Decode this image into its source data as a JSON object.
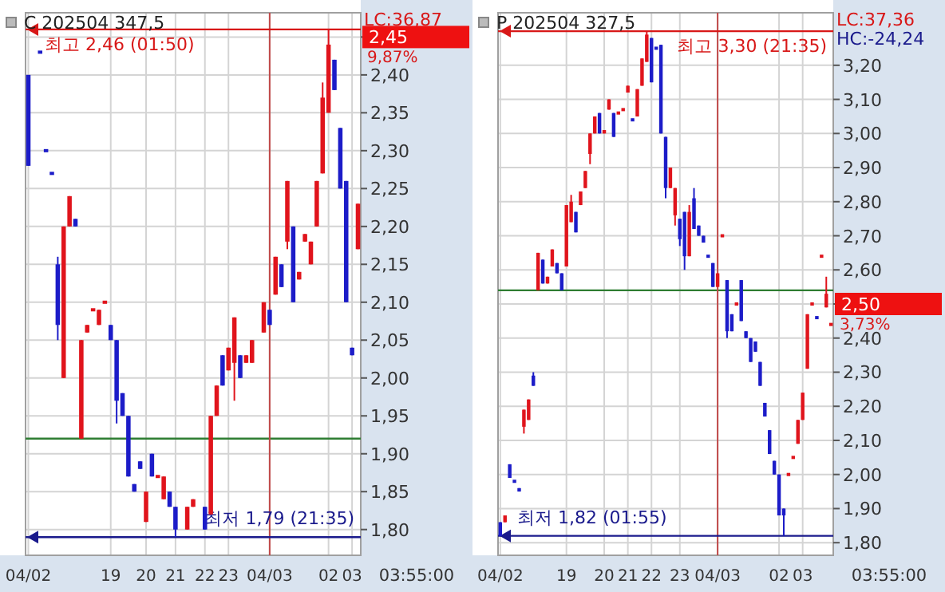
{
  "chart_data": [
    {
      "type": "candlestick",
      "title": "C 202504 347,5",
      "categories": [
        "04/02",
        null,
        null,
        null,
        null,
        null,
        null,
        null,
        null,
        null,
        null,
        null,
        null,
        null,
        "19",
        null,
        null,
        null,
        null,
        null,
        "20",
        null,
        null,
        null,
        null,
        "21",
        null,
        null,
        null,
        null,
        "22",
        null,
        null,
        null,
        "23",
        null,
        null,
        null,
        null,
        null,
        null,
        "04/03",
        null,
        null,
        null,
        null,
        null,
        null,
        null,
        null,
        null,
        "02",
        null,
        null,
        null,
        "03",
        null
      ],
      "ohlc": [
        [
          2.4,
          2.4,
          2.28,
          2.28
        ],
        null,
        [
          2.43,
          2.43,
          2.43,
          2.43
        ],
        [
          2.3,
          2.3,
          2.3,
          2.3
        ],
        [
          2.27,
          2.27,
          2.27,
          2.27
        ],
        [
          2.15,
          2.16,
          2.05,
          2.07
        ],
        [
          2.0,
          2.2,
          2.0,
          2.2
        ],
        [
          2.2,
          2.24,
          2.2,
          2.24
        ],
        [
          2.21,
          2.21,
          2.2,
          2.2
        ],
        [
          1.92,
          2.05,
          1.92,
          2.05
        ],
        [
          2.06,
          2.07,
          2.06,
          2.07
        ],
        [
          2.09,
          2.09,
          2.09,
          2.09
        ],
        [
          2.07,
          2.09,
          2.07,
          2.09
        ],
        [
          2.1,
          2.1,
          2.1,
          2.1
        ],
        [
          2.07,
          2.07,
          2.05,
          2.05
        ],
        [
          2.05,
          2.05,
          1.94,
          1.97
        ],
        [
          1.98,
          1.98,
          1.95,
          1.95
        ],
        [
          1.95,
          1.95,
          1.87,
          1.87
        ],
        [
          1.86,
          1.86,
          1.85,
          1.85
        ],
        [
          1.89,
          1.89,
          1.88,
          1.88
        ],
        [
          1.81,
          1.85,
          1.81,
          1.85
        ],
        [
          1.9,
          1.9,
          1.87,
          1.87
        ],
        [
          1.87,
          1.87,
          1.87,
          1.87
        ],
        [
          1.84,
          1.87,
          1.84,
          1.87
        ],
        [
          1.85,
          1.85,
          1.83,
          1.83
        ],
        [
          1.83,
          1.83,
          1.79,
          1.8
        ],
        null,
        [
          1.8,
          1.83,
          1.8,
          1.83
        ],
        [
          1.83,
          1.84,
          1.83,
          1.84
        ],
        null,
        [
          1.83,
          1.83,
          1.8,
          1.8
        ],
        [
          1.82,
          1.95,
          1.82,
          1.95
        ],
        [
          1.95,
          1.99,
          1.95,
          1.99
        ],
        [
          2.03,
          2.03,
          1.99,
          1.99
        ],
        [
          2.01,
          2.04,
          2.01,
          2.04
        ],
        [
          2.02,
          2.08,
          1.97,
          2.08
        ],
        [
          2.03,
          2.03,
          2.0,
          2.0
        ],
        [
          2.02,
          2.03,
          2.02,
          2.03
        ],
        [
          2.02,
          2.05,
          2.02,
          2.05
        ],
        null,
        [
          2.06,
          2.1,
          2.06,
          2.1
        ],
        [
          2.09,
          2.09,
          2.07,
          2.07
        ],
        [
          2.11,
          2.16,
          2.11,
          2.16
        ],
        [
          2.15,
          2.15,
          2.12,
          2.12
        ],
        [
          2.18,
          2.26,
          2.17,
          2.26
        ],
        [
          2.2,
          2.2,
          2.1,
          2.1
        ],
        [
          2.13,
          2.14,
          2.13,
          2.14
        ],
        [
          2.18,
          2.19,
          2.18,
          2.19
        ],
        [
          2.15,
          2.18,
          2.15,
          2.18
        ],
        [
          2.2,
          2.26,
          2.2,
          2.26
        ],
        [
          2.27,
          2.39,
          2.27,
          2.37
        ],
        [
          2.35,
          2.46,
          2.35,
          2.44
        ],
        [
          2.42,
          2.42,
          2.38,
          2.38
        ],
        [
          2.33,
          2.33,
          2.25,
          2.25
        ],
        [
          2.26,
          2.26,
          2.1,
          2.1
        ],
        [
          2.04,
          2.04,
          2.03,
          2.03
        ],
        [
          2.17,
          2.23,
          2.17,
          2.23
        ]
      ],
      "colors": [
        "#1c1cc8",
        null,
        "#1c1cc8",
        "#1c1cc8",
        "#1c1cc8",
        "#1c1cc8",
        "#e0141c",
        "#e0141c",
        "#1c1cc8",
        "#e0141c",
        "#e0141c",
        "#e0141c",
        "#e0141c",
        "#e0141c",
        "#1c1cc8",
        "#1c1cc8",
        "#1c1cc8",
        "#1c1cc8",
        "#1c1cc8",
        "#1c1cc8",
        "#e0141c",
        "#1c1cc8",
        "#e0141c",
        "#e0141c",
        "#1c1cc8",
        "#1c1cc8",
        null,
        "#e0141c",
        "#e0141c",
        null,
        "#1c1cc8",
        "#e0141c",
        "#e0141c",
        "#1c1cc8",
        "#e0141c",
        "#e0141c",
        "#1c1cc8",
        "#e0141c",
        "#e0141c",
        null,
        "#e0141c",
        "#1c1cc8",
        "#e0141c",
        "#1c1cc8",
        "#e0141c",
        "#1c1cc8",
        "#e0141c",
        "#e0141c",
        "#e0141c",
        "#e0141c",
        "#e0141c",
        "#e0141c",
        "#1c1cc8",
        "#1c1cc8",
        "#1c1cc8",
        "#1c1cc8",
        "#e0141c"
      ],
      "ylim": [
        1.766,
        2.482
      ],
      "yticks": [
        {
          "value": 1.8,
          "label": "1,80"
        },
        {
          "value": 1.85,
          "label": "1,85"
        },
        {
          "value": 1.9,
          "label": "1,90"
        },
        {
          "value": 1.95,
          "label": "1,95"
        },
        {
          "value": 2.0,
          "label": "2,00"
        },
        {
          "value": 2.05,
          "label": "2,05"
        },
        {
          "value": 2.1,
          "label": "2,10"
        },
        {
          "value": 2.15,
          "label": "2,15"
        },
        {
          "value": 2.2,
          "label": "2,20"
        },
        {
          "value": 2.25,
          "label": "2,25"
        },
        {
          "value": 2.3,
          "label": "2,30"
        },
        {
          "value": 2.35,
          "label": "2,35"
        },
        {
          "value": 2.4,
          "label": "2,40"
        },
        {
          "value": 2.45,
          "label": null
        }
      ],
      "grid": true,
      "ref_lines": [
        {
          "axis": "y",
          "value": 1.92,
          "color": "#2e7d32"
        },
        {
          "axis": "x",
          "value": "04/03",
          "color": "#c04848"
        },
        {
          "axis": "y",
          "value": 2.46,
          "label": "최고 2,46 (01:50)",
          "color": "#d81818"
        },
        {
          "axis": "y",
          "value": 1.79,
          "label": "최저 1,79 (21:35)",
          "color": "#1a1a8c"
        }
      ],
      "annotations": [
        "LC:36,87",
        "2,45",
        "9,87%",
        "03:55:00"
      ]
    },
    {
      "type": "candlestick",
      "title": "P 202504 327,5",
      "categories": [
        "04/02",
        null,
        null,
        null,
        null,
        null,
        null,
        null,
        null,
        null,
        null,
        null,
        null,
        null,
        "19",
        null,
        null,
        null,
        null,
        null,
        null,
        null,
        "20",
        null,
        null,
        null,
        null,
        "21",
        null,
        null,
        null,
        null,
        "22",
        null,
        null,
        null,
        null,
        null,
        "23",
        null,
        null,
        null,
        null,
        null,
        null,
        null,
        "04/03",
        null,
        null,
        null,
        null,
        null,
        null,
        null,
        null,
        null,
        null,
        null,
        null,
        "02",
        null,
        null,
        null,
        null,
        "03",
        null,
        null,
        null,
        null,
        null,
        null
      ],
      "ohlc": [
        [
          1.86,
          1.86,
          1.82,
          1.82
        ],
        [
          1.86,
          1.88,
          1.86,
          1.88
        ],
        [
          2.03,
          2.03,
          1.99,
          1.99
        ],
        [
          1.98,
          1.98,
          1.98,
          1.98
        ],
        [
          1.96,
          1.96,
          1.95,
          1.95
        ],
        [
          2.14,
          2.19,
          2.12,
          2.19
        ],
        [
          2.16,
          2.22,
          2.16,
          2.22
        ],
        [
          2.29,
          2.3,
          2.26,
          2.26
        ],
        [
          2.54,
          2.65,
          2.54,
          2.65
        ],
        [
          2.63,
          2.63,
          2.56,
          2.56
        ],
        [
          2.56,
          2.58,
          2.56,
          2.58
        ],
        [
          2.61,
          2.66,
          2.61,
          2.66
        ],
        [
          2.62,
          2.62,
          2.59,
          2.59
        ],
        [
          2.59,
          2.59,
          2.54,
          2.54
        ],
        [
          2.61,
          2.79,
          2.61,
          2.79
        ],
        [
          2.74,
          2.82,
          2.74,
          2.8
        ],
        [
          2.77,
          2.77,
          2.71,
          2.71
        ],
        [
          2.79,
          2.83,
          2.79,
          2.83
        ],
        [
          2.84,
          2.89,
          2.84,
          2.89
        ],
        [
          2.94,
          3.0,
          2.91,
          3.0
        ],
        [
          3.0,
          3.05,
          3.0,
          3.05
        ],
        [
          3.06,
          3.06,
          3.0,
          3.0
        ],
        [
          3.0,
          3.01,
          3.0,
          3.01
        ],
        [
          3.07,
          3.1,
          3.07,
          3.1
        ],
        [
          3.06,
          3.06,
          2.99,
          2.99
        ],
        [
          3.06,
          3.06,
          3.06,
          3.06
        ],
        [
          3.07,
          3.07,
          3.07,
          3.07
        ],
        [
          3.12,
          3.14,
          3.12,
          3.14
        ],
        [
          3.04,
          3.04,
          3.04,
          3.04
        ],
        [
          3.05,
          3.13,
          3.05,
          3.13
        ],
        [
          3.14,
          3.22,
          3.14,
          3.22
        ],
        [
          3.21,
          3.3,
          3.21,
          3.29
        ],
        [
          3.28,
          3.28,
          3.15,
          3.15
        ],
        [
          3.25,
          3.25,
          3.25,
          3.25
        ],
        [
          3.26,
          3.26,
          3.0,
          3.0
        ],
        [
          2.99,
          2.99,
          2.81,
          2.84
        ],
        [
          2.84,
          2.9,
          2.84,
          2.9
        ],
        [
          2.76,
          2.84,
          2.73,
          2.84
        ],
        [
          2.75,
          2.75,
          2.67,
          2.69
        ],
        [
          2.77,
          2.77,
          2.6,
          2.64
        ],
        [
          2.64,
          2.79,
          2.64,
          2.77
        ],
        [
          2.81,
          2.84,
          2.72,
          2.72
        ],
        [
          2.73,
          2.73,
          2.7,
          2.7
        ],
        [
          2.7,
          2.7,
          2.68,
          2.68
        ],
        [
          2.64,
          2.64,
          2.64,
          2.64
        ],
        [
          2.62,
          2.62,
          2.55,
          2.55
        ],
        [
          2.55,
          2.59,
          2.55,
          2.59
        ],
        [
          2.7,
          2.7,
          2.7,
          2.7
        ],
        [
          2.57,
          2.57,
          2.4,
          2.42
        ],
        [
          2.47,
          2.47,
          2.42,
          2.42
        ],
        [
          2.5,
          2.5,
          2.5,
          2.5
        ],
        [
          2.57,
          2.57,
          2.45,
          2.45
        ],
        [
          2.42,
          2.42,
          2.4,
          2.4
        ],
        [
          2.4,
          2.4,
          2.33,
          2.33
        ],
        [
          2.39,
          2.39,
          2.36,
          2.36
        ],
        [
          2.33,
          2.33,
          2.26,
          2.26
        ],
        [
          2.21,
          2.21,
          2.17,
          2.17
        ],
        [
          2.13,
          2.13,
          2.06,
          2.06
        ],
        [
          2.04,
          2.04,
          2.0,
          2.0
        ],
        [
          2.0,
          2.0,
          1.88,
          1.88
        ],
        [
          1.9,
          1.9,
          1.82,
          1.88
        ],
        [
          2.0,
          2.0,
          2.0,
          2.0
        ],
        [
          2.05,
          2.05,
          2.05,
          2.05
        ],
        [
          2.09,
          2.16,
          2.09,
          2.16
        ],
        [
          2.16,
          2.24,
          2.16,
          2.24
        ],
        [
          2.31,
          2.47,
          2.31,
          2.47
        ],
        [
          2.5,
          2.5,
          2.5,
          2.5
        ],
        [
          2.46,
          2.46,
          2.46,
          2.46
        ],
        [
          2.64,
          2.64,
          2.64,
          2.64
        ],
        [
          2.49,
          2.58,
          2.49,
          2.53
        ],
        [
          2.44,
          2.44,
          2.44,
          2.44
        ]
      ],
      "colors": [
        "#1c1cc8",
        "#e0141c",
        "#1c1cc8",
        "#1c1cc8",
        "#1c1cc8",
        "#e0141c",
        "#e0141c",
        "#1c1cc8",
        "#e0141c",
        "#1c1cc8",
        "#e0141c",
        "#e0141c",
        "#1c1cc8",
        "#1c1cc8",
        "#e0141c",
        "#e0141c",
        "#1c1cc8",
        "#e0141c",
        "#e0141c",
        "#e0141c",
        "#e0141c",
        "#1c1cc8",
        "#e0141c",
        "#e0141c",
        "#1c1cc8",
        "#e0141c",
        "#e0141c",
        "#e0141c",
        "#1c1cc8",
        "#e0141c",
        "#e0141c",
        "#e0141c",
        "#1c1cc8",
        "#1c1cc8",
        "#1c1cc8",
        "#1c1cc8",
        "#e0141c",
        "#e0141c",
        "#1c1cc8",
        "#1c1cc8",
        "#e0141c",
        "#1c1cc8",
        "#1c1cc8",
        "#1c1cc8",
        "#1c1cc8",
        "#1c1cc8",
        "#e0141c",
        "#e0141c",
        "#1c1cc8",
        "#1c1cc8",
        "#e0141c",
        "#1c1cc8",
        "#1c1cc8",
        "#1c1cc8",
        "#1c1cc8",
        "#1c1cc8",
        "#1c1cc8",
        "#1c1cc8",
        "#1c1cc8",
        "#1c1cc8",
        "#1c1cc8",
        "#e0141c",
        "#e0141c",
        "#e0141c",
        "#e0141c",
        "#e0141c",
        "#e0141c",
        "#1c1cc8",
        "#e0141c",
        "#e0141c",
        "#e0141c"
      ],
      "ylim": [
        1.763,
        3.354
      ],
      "yticks": [
        {
          "value": 1.8,
          "label": "1,80"
        },
        {
          "value": 1.9,
          "label": "1,90"
        },
        {
          "value": 2.0,
          "label": "2,00"
        },
        {
          "value": 2.1,
          "label": "2,10"
        },
        {
          "value": 2.2,
          "label": "2,20"
        },
        {
          "value": 2.3,
          "label": "2,30"
        },
        {
          "value": 2.4,
          "label": "2,40"
        },
        {
          "value": 2.5,
          "label": null
        },
        {
          "value": 2.6,
          "label": "2,60"
        },
        {
          "value": 2.7,
          "label": "2,70"
        },
        {
          "value": 2.8,
          "label": "2,80"
        },
        {
          "value": 2.9,
          "label": "2,90"
        },
        {
          "value": 3.0,
          "label": "3,00"
        },
        {
          "value": 3.1,
          "label": "3,10"
        },
        {
          "value": 3.2,
          "label": "3,20"
        }
      ],
      "grid": true,
      "ref_lines": [
        {
          "axis": "y",
          "value": 2.54,
          "color": "#2e7d32"
        },
        {
          "axis": "x",
          "value": "04/03",
          "color": "#c04848"
        },
        {
          "axis": "y",
          "value": 3.3,
          "label": "최고 3,30 (21:35)",
          "color": "#d81818"
        },
        {
          "axis": "y",
          "value": 1.82,
          "label": "최저 1,82 (01:55)",
          "color": "#1a1a8c"
        }
      ],
      "annotations": [
        "LC:37,36",
        "HC:-24,24",
        "2,50",
        "3,73%",
        "03:55:00"
      ]
    }
  ]
}
